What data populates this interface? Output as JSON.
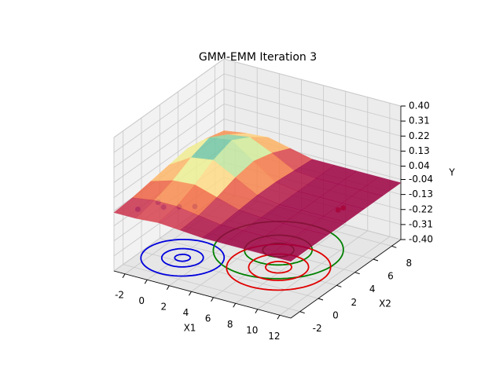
{
  "chart_data": {
    "type": "surface3d",
    "title": "GMM-EMM Iteration 3",
    "x1label": "X1",
    "x2label": "X2",
    "ylabel": "Y",
    "x1lim": [
      -3,
      13
    ],
    "x2lim": [
      -3,
      9
    ],
    "ylim": [
      -0.4,
      0.4
    ],
    "x1ticks": [
      -2,
      0,
      2,
      4,
      6,
      8,
      10,
      12
    ],
    "x2ticks": [
      -2,
      0,
      2,
      4,
      6,
      8
    ],
    "yticks": [
      {
        "value": -0.4,
        "label": "-0.40"
      },
      -0.31,
      -0.22,
      -0.13,
      -0.04,
      0.04,
      0.13,
      0.22,
      0.31,
      {
        "value": 0.4,
        "label": "0.40"
      }
    ],
    "grid": true,
    "surface": {
      "x1": [
        -3,
        -1,
        1,
        3,
        5,
        7,
        9,
        11,
        13
      ],
      "x2": [
        -3,
        -1,
        1,
        3,
        5,
        7,
        9
      ],
      "colors": [
        "#9e0142",
        "#d53e4f",
        "#f46d43",
        "#fdae61",
        "#fee08b",
        "#e6f598",
        "#abdda4",
        "#66c2a5",
        "#3288bd"
      ],
      "y": [
        [
          -0.05,
          -0.05,
          -0.04,
          -0.05,
          -0.06,
          -0.06,
          -0.06,
          -0.06,
          -0.06
        ],
        [
          -0.04,
          -0.02,
          -0.02,
          -0.04,
          -0.06,
          -0.06,
          -0.06,
          -0.06,
          -0.06
        ],
        [
          -0.02,
          0.02,
          0.03,
          -0.01,
          -0.05,
          -0.06,
          -0.06,
          -0.06,
          -0.06
        ],
        [
          0.0,
          0.08,
          0.1,
          0.03,
          -0.04,
          -0.06,
          -0.06,
          -0.06,
          -0.06
        ],
        [
          0.02,
          0.12,
          0.14,
          0.05,
          -0.04,
          -0.06,
          -0.06,
          -0.06,
          -0.06
        ],
        [
          0.0,
          0.06,
          0.08,
          0.02,
          -0.05,
          -0.06,
          -0.06,
          -0.06,
          -0.06
        ],
        [
          -0.03,
          -0.01,
          0.0,
          -0.03,
          -0.06,
          -0.06,
          -0.06,
          -0.06,
          -0.06
        ]
      ]
    },
    "points": [
      {
        "color": "#1f1fdd",
        "x1": [
          -2.5,
          -1.5,
          -1,
          0,
          1
        ],
        "x2": [
          -1,
          0,
          0,
          0.5,
          1
        ],
        "y": [
          -0.1,
          -0.08,
          -0.1,
          -0.1,
          -0.1
        ]
      },
      {
        "color": "#e8170f",
        "x1": [
          12.3,
          12.6
        ],
        "x2": [
          3,
          3.2
        ],
        "y": [
          0,
          0.01
        ]
      }
    ],
    "contours": [
      {
        "color": "#0000dd",
        "center": [
          0.3,
          0.5
        ],
        "radii": [
          0.6,
          1.6,
          3.2
        ]
      },
      {
        "color": "#008000",
        "center": [
          5.9,
          4.2
        ],
        "radii": [
          1.2,
          2.6,
          5
        ]
      },
      {
        "color": "#e00000",
        "center": [
          7.5,
          2.3
        ],
        "radii": [
          1,
          2.3,
          4
        ]
      }
    ]
  }
}
